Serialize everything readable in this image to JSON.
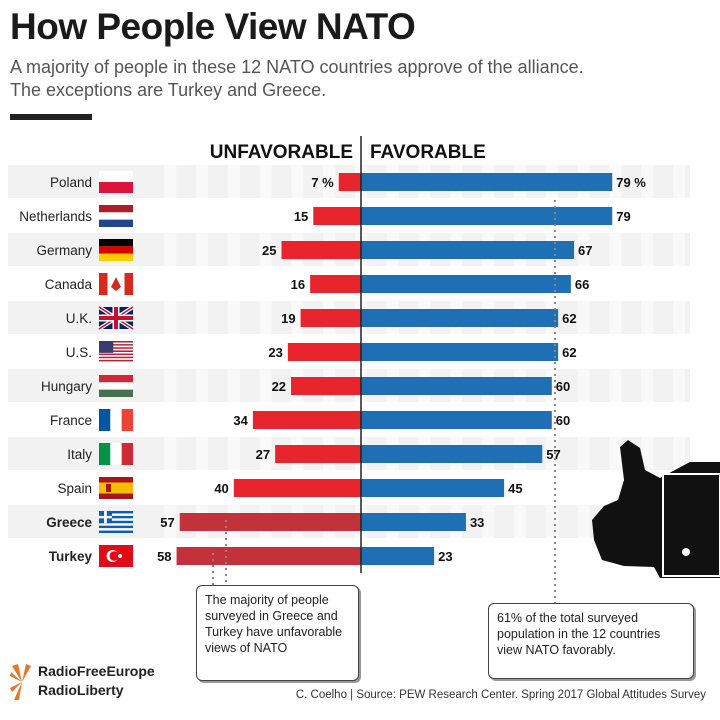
{
  "title": "How People View NATO",
  "subtitle_line1": "A majority of people in these 12 NATO countries approve of the alliance.",
  "subtitle_line2": "The exceptions are Turkey and Greece.",
  "source": "C. Coelho | Source: PEW Research Center. Spring 2017 Global Attitudes Survey",
  "logo": {
    "line1": "RadioFreeEurope",
    "line2": "RadioLiberty",
    "color": "#e8752a"
  },
  "annotations": {
    "left": "The majority of people surveyed in Greece and Turkey have unfavorable views of NATO",
    "right": "61% of the total surveyed population in the 12 countries view NATO favorably."
  },
  "colors": {
    "unfavorable": "#e8252c",
    "unfavorable_highlight": "#c1323a",
    "favorable": "#1f6fb5",
    "stripe": "#f2f2f2"
  },
  "chart_data": {
    "type": "bar",
    "orientation": "diverging-horizontal",
    "categories": [
      "Poland",
      "Netherlands",
      "Germany",
      "Canada",
      "U.K.",
      "U.S.",
      "Hungary",
      "France",
      "Italy",
      "Spain",
      "Greece",
      "Turkey"
    ],
    "highlighted": [
      "Greece",
      "Turkey"
    ],
    "series": [
      {
        "name": "UNFAVORABLE",
        "values": [
          7,
          15,
          25,
          16,
          19,
          23,
          22,
          34,
          27,
          40,
          57,
          58
        ]
      },
      {
        "name": "FAVORABLE",
        "values": [
          79,
          79,
          67,
          66,
          62,
          62,
          60,
          60,
          57,
          45,
          33,
          23
        ]
      }
    ],
    "first_label_suffix": "%",
    "reference_line": 61,
    "xlim": [
      0,
      80
    ]
  }
}
